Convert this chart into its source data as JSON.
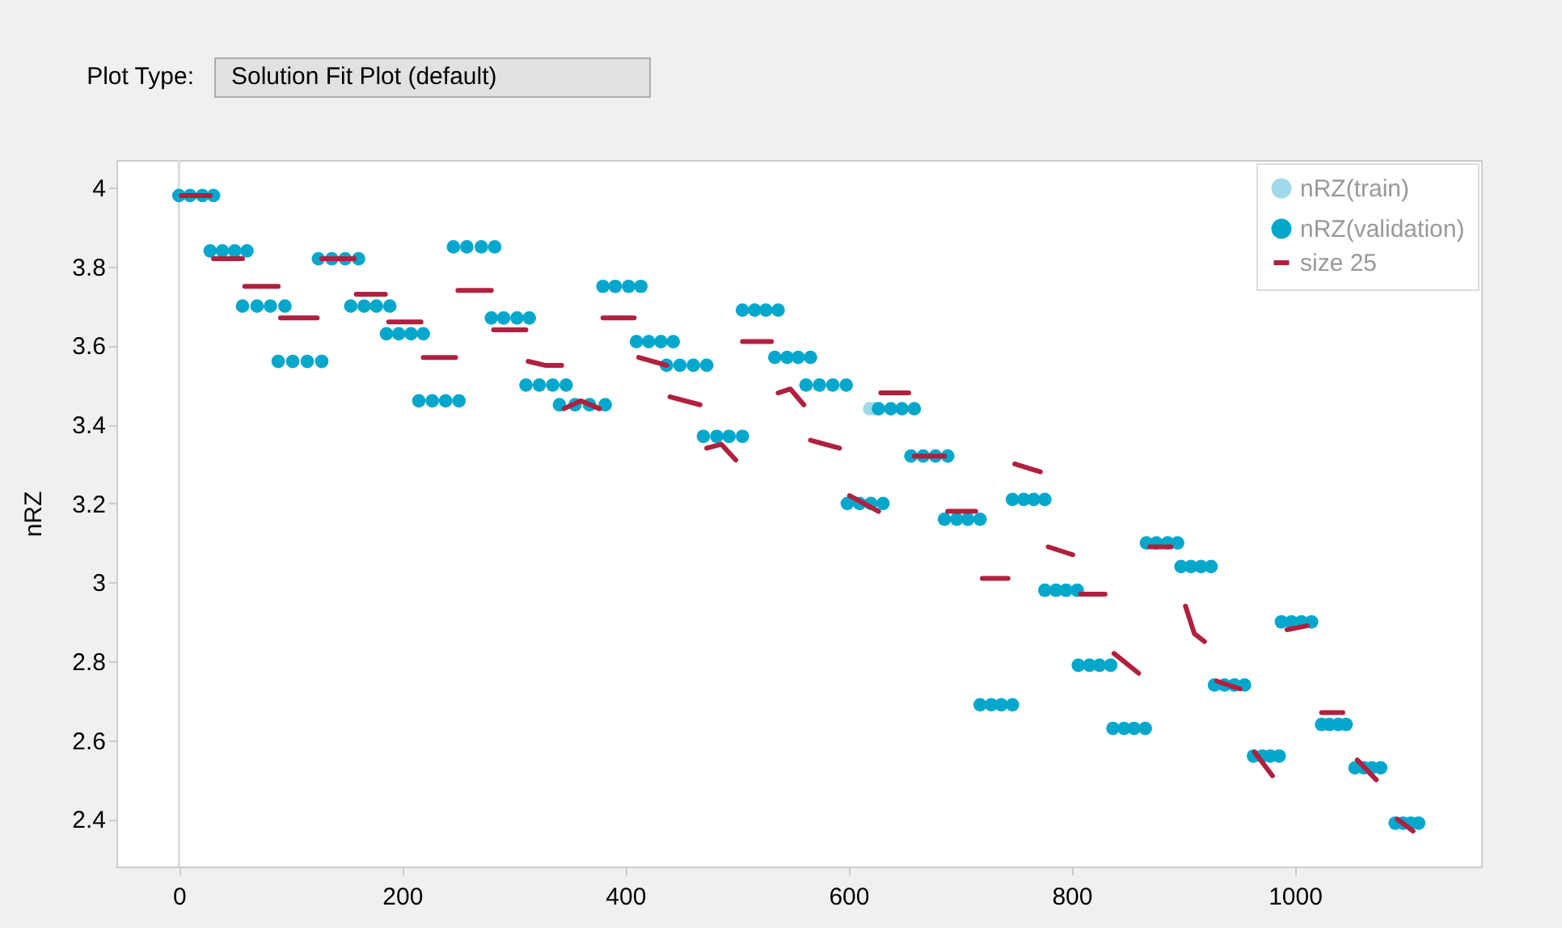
{
  "chart_data": {
    "type": "scatter",
    "ylabel": "nRZ",
    "legend": "top right",
    "annotations": [
      "Plot Type:",
      "Solution Fit Plot (default)"
    ],
    "xlim": [
      -56,
      1167
    ],
    "xticks": [
      0,
      200,
      400,
      600,
      800,
      1000
    ],
    "ylim": [
      2.28,
      4.07
    ],
    "yticks": [
      2.4,
      2.6,
      2.8,
      3,
      3.2,
      3.4,
      3.6,
      3.8,
      4
    ],
    "ref_lines": [
      {
        "axis": "x",
        "value": 0,
        "color": "#dddddd"
      }
    ],
    "series": [
      {
        "name": "nRZ(train)",
        "color": "#9fd9ea",
        "marker": "circle",
        "x": [
          619,
          623
        ],
        "values": [
          3.44,
          3.44
        ]
      },
      {
        "name": "nRZ(validation)",
        "color": "#04a7cc",
        "marker": "circle",
        "x": [
          0,
          10,
          21,
          31,
          28,
          39,
          50,
          61,
          57,
          70,
          82,
          95,
          89,
          102,
          115,
          128,
          125,
          137,
          149,
          161,
          154,
          166,
          177,
          189,
          186,
          197,
          208,
          219,
          215,
          227,
          239,
          251,
          246,
          258,
          271,
          283,
          280,
          291,
          303,
          314,
          311,
          323,
          335,
          347,
          341,
          355,
          368,
          382,
          380,
          391,
          403,
          414,
          410,
          421,
          432,
          443,
          437,
          449,
          461,
          473,
          470,
          482,
          493,
          505,
          505,
          516,
          526,
          537,
          534,
          545,
          555,
          566,
          562,
          574,
          586,
          598,
          599,
          610,
          620,
          631,
          627,
          638,
          648,
          659,
          656,
          667,
          678,
          689,
          686,
          697,
          707,
          718,
          718,
          728,
          737,
          747,
          747,
          757,
          766,
          776,
          776,
          786,
          795,
          805,
          806,
          816,
          825,
          835,
          837,
          847,
          856,
          866,
          867,
          876,
          886,
          895,
          898,
          907,
          916,
          925,
          928,
          937,
          946,
          955,
          963,
          971,
          978,
          986,
          988,
          997,
          1006,
          1015,
          1024,
          1031,
          1039,
          1046,
          1054,
          1062,
          1069,
          1077,
          1090,
          1097,
          1104,
          1111
        ],
        "values": [
          3.98,
          3.98,
          3.98,
          3.98,
          3.84,
          3.84,
          3.84,
          3.84,
          3.7,
          3.7,
          3.7,
          3.7,
          3.56,
          3.56,
          3.56,
          3.56,
          3.82,
          3.82,
          3.82,
          3.82,
          3.7,
          3.7,
          3.7,
          3.7,
          3.63,
          3.63,
          3.63,
          3.63,
          3.46,
          3.46,
          3.46,
          3.46,
          3.85,
          3.85,
          3.85,
          3.85,
          3.67,
          3.67,
          3.67,
          3.67,
          3.5,
          3.5,
          3.5,
          3.5,
          3.45,
          3.45,
          3.45,
          3.45,
          3.75,
          3.75,
          3.75,
          3.75,
          3.61,
          3.61,
          3.61,
          3.61,
          3.55,
          3.55,
          3.55,
          3.55,
          3.37,
          3.37,
          3.37,
          3.37,
          3.69,
          3.69,
          3.69,
          3.69,
          3.57,
          3.57,
          3.57,
          3.57,
          3.5,
          3.5,
          3.5,
          3.5,
          3.2,
          3.2,
          3.2,
          3.2,
          3.44,
          3.44,
          3.44,
          3.44,
          3.32,
          3.32,
          3.32,
          3.32,
          3.16,
          3.16,
          3.16,
          3.16,
          2.69,
          2.69,
          2.69,
          2.69,
          3.21,
          3.21,
          3.21,
          3.21,
          2.98,
          2.98,
          2.98,
          2.98,
          2.79,
          2.79,
          2.79,
          2.79,
          2.63,
          2.63,
          2.63,
          2.63,
          3.1,
          3.1,
          3.1,
          3.1,
          3.04,
          3.04,
          3.04,
          3.04,
          2.74,
          2.74,
          2.74,
          2.74,
          2.56,
          2.56,
          2.56,
          2.56,
          2.9,
          2.9,
          2.9,
          2.9,
          2.64,
          2.64,
          2.64,
          2.64,
          2.53,
          2.53,
          2.53,
          2.53,
          2.39,
          2.39,
          2.39,
          2.39
        ]
      },
      {
        "name": "size 25",
        "color": "#b0203f",
        "type": "line",
        "line_style": "solid",
        "marker": "none",
        "x": [
          2,
          28,
          30,
          31,
          57,
          58,
          59,
          89,
          90,
          91,
          124,
          126,
          128,
          157,
          158,
          159,
          185,
          186,
          188,
          217,
          218,
          219,
          248,
          249,
          250,
          280,
          281,
          282,
          311,
          312,
          313,
          328,
          343,
          344,
          345,
          360,
          377,
          378,
          380,
          408,
          410,
          412,
          437,
          438,
          440,
          467,
          470,
          473,
          486,
          499,
          502,
          505,
          531,
          534,
          537,
          548,
          560,
          563,
          566,
          592,
          596,
          601,
          627,
          628,
          629,
          654,
          656,
          659,
          686,
          688,
          689,
          714,
          717,
          720,
          743,
          746,
          749,
          772,
          775,
          779,
          801,
          804,
          808,
          830,
          834,
          838,
          860,
          865,
          870,
          889,
          895,
          902,
          910,
          919,
          925,
          930,
          951,
          958,
          964,
          980,
          987,
          993,
          1011,
          1018,
          1024,
          1043,
          1050,
          1056,
          1073,
          1083,
          1092,
          1106
        ],
        "values": [
          3.98,
          3.98,
          null,
          3.82,
          3.82,
          null,
          3.75,
          3.75,
          null,
          3.67,
          3.67,
          null,
          3.82,
          3.82,
          null,
          3.73,
          3.73,
          null,
          3.66,
          3.66,
          null,
          3.57,
          3.57,
          null,
          3.74,
          3.74,
          null,
          3.64,
          3.64,
          null,
          3.56,
          3.55,
          3.55,
          null,
          3.44,
          3.46,
          3.44,
          null,
          3.67,
          3.67,
          null,
          3.57,
          3.55,
          null,
          3.47,
          3.45,
          null,
          3.34,
          3.35,
          3.31,
          null,
          3.61,
          3.61,
          null,
          3.48,
          3.49,
          3.45,
          null,
          3.36,
          3.34,
          null,
          3.22,
          3.18,
          null,
          3.48,
          3.48,
          null,
          3.32,
          3.32,
          null,
          3.18,
          3.18,
          null,
          3.01,
          3.01,
          null,
          3.3,
          3.28,
          null,
          3.09,
          3.07,
          null,
          2.97,
          2.97,
          null,
          2.82,
          2.77,
          null,
          3.09,
          3.09,
          null,
          2.94,
          2.87,
          2.85,
          null,
          2.75,
          2.73,
          null,
          2.57,
          2.51,
          null,
          2.88,
          2.89,
          null,
          2.67,
          2.67,
          null,
          2.55,
          2.5,
          null,
          2.4,
          2.37
        ]
      }
    ]
  }
}
